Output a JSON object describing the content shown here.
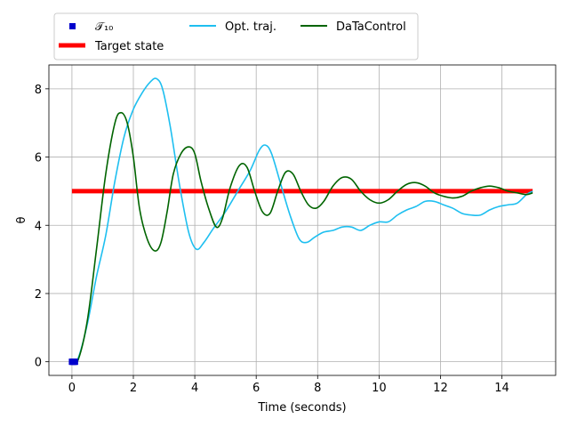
{
  "chart_data": {
    "type": "line",
    "xlabel": "Time (seconds)",
    "ylabel": "θ",
    "xlim": [
      -0.75,
      15.75
    ],
    "ylim": [
      -0.4,
      8.7
    ],
    "xticks": [
      0,
      2,
      4,
      6,
      8,
      10,
      12,
      14
    ],
    "yticks": [
      0,
      2,
      4,
      6,
      8
    ],
    "grid": true,
    "legend_placement": "top",
    "series": [
      {
        "name": "𝒯₁₀",
        "kind": "markers",
        "color": "#0000cc",
        "x": [
          0,
          0.02,
          0.04,
          0.06,
          0.08,
          0.1
        ],
        "y": [
          0,
          0,
          0,
          0,
          0,
          0
        ]
      },
      {
        "name": "Target state",
        "kind": "line",
        "color": "#ff0000",
        "x": [
          0,
          15
        ],
        "y": [
          5,
          5
        ]
      },
      {
        "name": "Opt. traj.",
        "kind": "line",
        "color": "#1ebff0",
        "x": [
          0,
          0.2,
          0.5,
          0.8,
          1.1,
          1.4,
          1.7,
          2.0,
          2.3,
          2.55,
          2.75,
          2.95,
          3.2,
          3.5,
          3.8,
          4.05,
          4.3,
          4.6,
          5.0,
          5.4,
          5.8,
          6.1,
          6.3,
          6.5,
          6.8,
          7.1,
          7.4,
          7.65,
          7.9,
          8.2,
          8.5,
          8.8,
          9.1,
          9.4,
          9.7,
          10.0,
          10.3,
          10.6,
          10.9,
          11.2,
          11.5,
          11.8,
          12.1,
          12.4,
          12.7,
          13.0,
          13.3,
          13.6,
          13.9,
          14.2,
          14.5,
          14.8,
          15.0
        ],
        "y": [
          0,
          0.1,
          1.1,
          2.5,
          3.7,
          5.3,
          6.6,
          7.4,
          7.9,
          8.2,
          8.3,
          8.0,
          6.9,
          5.2,
          3.8,
          3.3,
          3.5,
          3.9,
          4.4,
          5.0,
          5.6,
          6.2,
          6.35,
          6.1,
          5.2,
          4.3,
          3.6,
          3.5,
          3.65,
          3.8,
          3.85,
          3.95,
          3.95,
          3.85,
          4.0,
          4.1,
          4.1,
          4.3,
          4.45,
          4.55,
          4.7,
          4.7,
          4.6,
          4.5,
          4.35,
          4.3,
          4.3,
          4.45,
          4.55,
          4.6,
          4.65,
          4.9,
          5.0
        ]
      },
      {
        "name": "DaTaControl",
        "kind": "line",
        "color": "#006400",
        "x": [
          0,
          0.2,
          0.5,
          0.8,
          1.1,
          1.4,
          1.6,
          1.8,
          2.0,
          2.2,
          2.45,
          2.7,
          2.9,
          3.1,
          3.3,
          3.55,
          3.8,
          4.0,
          4.2,
          4.45,
          4.7,
          4.9,
          5.15,
          5.45,
          5.7,
          5.95,
          6.2,
          6.45,
          6.7,
          6.95,
          7.2,
          7.45,
          7.7,
          7.95,
          8.2,
          8.5,
          8.8,
          9.1,
          9.4,
          9.7,
          10.0,
          10.3,
          10.6,
          10.9,
          11.2,
          11.5,
          11.8,
          12.1,
          12.4,
          12.7,
          13.0,
          13.3,
          13.6,
          13.9,
          14.2,
          14.5,
          14.8,
          15.0
        ],
        "y": [
          0,
          0.05,
          1.2,
          3.3,
          5.5,
          7.0,
          7.3,
          7.0,
          6.0,
          4.5,
          3.6,
          3.25,
          3.5,
          4.4,
          5.5,
          6.1,
          6.3,
          6.1,
          5.3,
          4.5,
          3.95,
          4.2,
          5.1,
          5.75,
          5.7,
          5.0,
          4.4,
          4.35,
          5.0,
          5.55,
          5.5,
          5.0,
          4.6,
          4.5,
          4.7,
          5.15,
          5.4,
          5.35,
          5.0,
          4.75,
          4.65,
          4.75,
          5.0,
          5.2,
          5.25,
          5.15,
          4.95,
          4.85,
          4.8,
          4.85,
          5.0,
          5.1,
          5.15,
          5.1,
          5.0,
          4.95,
          4.9,
          4.95
        ]
      }
    ]
  }
}
